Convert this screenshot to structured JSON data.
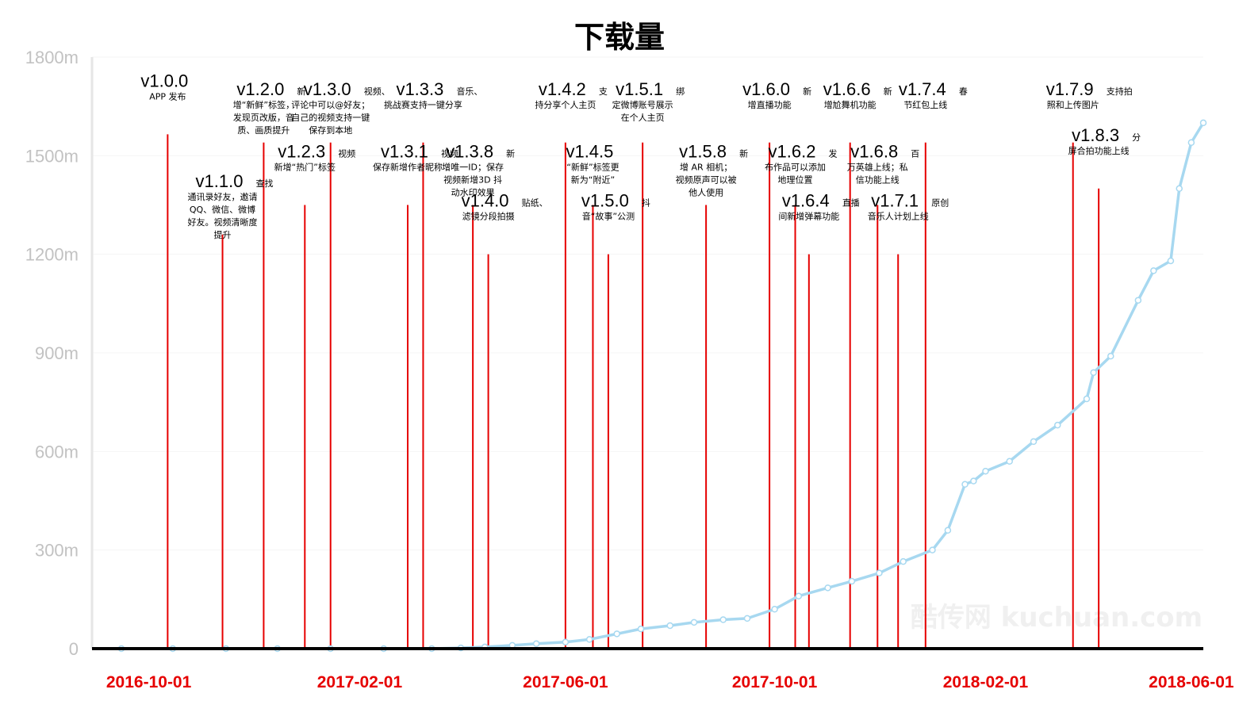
{
  "chart_data": {
    "type": "line",
    "title": "下载量",
    "watermark": "酷传网 kuchuan.com",
    "line_color": "#a7d8f0",
    "marker_color": "#e60000",
    "x_tick_color": "#e60000",
    "ylim": [
      0,
      1800
    ],
    "yticks": [
      "0",
      "300m",
      "600m",
      "900m",
      "1200m",
      "1500m",
      "1800m"
    ],
    "xlim": [
      "2016-09-15",
      "2018-06-08"
    ],
    "xticks": [
      {
        "date": "2016-10-01",
        "label": "2016-10-01"
      },
      {
        "date": "2017-02-01",
        "label": "2017-02-01"
      },
      {
        "date": "2017-06-01",
        "label": "2017-06-01"
      },
      {
        "date": "2017-10-01",
        "label": "2017-10-01"
      },
      {
        "date": "2018-02-01",
        "label": "2018-02-01"
      },
      {
        "date": "2018-06-01",
        "label": "2018-06-01"
      }
    ],
    "series": [
      {
        "x": [
          "2016-09-15",
          "2016-10-15",
          "2016-11-15",
          "2016-12-15",
          "2017-01-15",
          "2017-02-15",
          "2017-03-15",
          "2017-04-01",
          "2017-04-15",
          "2017-05-01",
          "2017-05-15",
          "2017-06-01",
          "2017-06-15",
          "2017-07-01",
          "2017-07-15",
          "2017-08-01",
          "2017-08-15",
          "2017-09-01",
          "2017-09-15",
          "2017-10-01",
          "2017-10-15",
          "2017-11-01",
          "2017-11-15",
          "2017-12-01",
          "2017-12-15",
          "2018-01-01",
          "2018-01-10",
          "2018-01-20",
          "2018-01-25",
          "2018-02-01",
          "2018-02-15",
          "2018-03-01",
          "2018-03-15",
          "2018-04-01",
          "2018-04-05",
          "2018-04-15",
          "2018-05-01",
          "2018-05-10",
          "2018-05-20",
          "2018-05-25",
          "2018-06-01",
          "2018-06-08"
        ],
        "y": [
          0,
          0,
          0,
          0,
          0,
          0,
          0,
          2,
          5,
          10,
          15,
          20,
          28,
          45,
          60,
          70,
          80,
          88,
          92,
          120,
          160,
          185,
          205,
          230,
          265,
          300,
          360,
          500,
          510,
          540,
          570,
          630,
          680,
          760,
          840,
          890,
          1060,
          1150,
          1180,
          1400,
          1540,
          1600
        ]
      }
    ],
    "markers": [
      {
        "date": "2016-10-12",
        "top": "1565",
        "version": "v1.0.0",
        "text": [
          "APP 发布"
        ]
      },
      {
        "date": "2016-11-13",
        "top": "1260",
        "version": "v1.1.0",
        "text": [
          "查找",
          "通讯录好友，邀请",
          "QQ、微信、微博",
          "好友。视频清晰度",
          "提升"
        ]
      },
      {
        "date": "2016-12-07",
        "top": "1540",
        "version": "v1.2.0",
        "text": [
          "新",
          "增“新鲜”标签，",
          "发现页改版，音",
          "质、画质提升"
        ]
      },
      {
        "date": "2016-12-31",
        "top": "1350",
        "version": "v1.2.3",
        "text": [
          "视频",
          "新增“热门”标签"
        ]
      },
      {
        "date": "2017-01-15",
        "top": "1540",
        "version": "v1.3.0",
        "text": [
          "视频、",
          "评论中可以@好友；",
          "自己的视频支持一键",
          "保存到本地"
        ]
      },
      {
        "date": "2017-03-01",
        "top": "1350",
        "version": "v1.3.1",
        "text": [
          "视频",
          "保存新增作者昵称"
        ]
      },
      {
        "date": "2017-03-10",
        "top": "1540",
        "version": "v1.3.3",
        "text": [
          "音乐、",
          "挑战赛支持一键分享"
        ]
      },
      {
        "date": "2017-04-08",
        "top": "1350",
        "version": "v1.3.8",
        "text": [
          "新",
          "增唯一ID；保存",
          "视频新增3D 抖",
          "动水印效果"
        ]
      },
      {
        "date": "2017-04-17",
        "top": "1200",
        "version": "v1.4.0",
        "text": [
          "贴纸、",
          "滤镜分段拍摄"
        ]
      },
      {
        "date": "2017-06-01",
        "top": "1540",
        "version": "v1.4.2",
        "text": [
          "支",
          "持分享个人主页"
        ]
      },
      {
        "date": "2017-06-17",
        "top": "1350",
        "version": "v1.4.5",
        "text": [
          "“新鲜”标签更",
          "新为“附近”"
        ]
      },
      {
        "date": "2017-06-26",
        "top": "1200",
        "version": "v1.5.0",
        "text": [
          "抖",
          "音“故事”公测"
        ]
      },
      {
        "date": "2017-07-16",
        "top": "1540",
        "version": "v1.5.1",
        "text": [
          "绑",
          "定微博账号展示",
          "在个人主页"
        ]
      },
      {
        "date": "2017-08-22",
        "top": "1350",
        "version": "v1.5.8",
        "text": [
          "新",
          "增 AR 相机；",
          "视频原声可以被",
          "他人使用"
        ]
      },
      {
        "date": "2017-09-28",
        "top": "1540",
        "version": "v1.6.0",
        "text": [
          "新",
          "增直播功能"
        ]
      },
      {
        "date": "2017-10-13",
        "top": "1350",
        "version": "v1.6.2",
        "text": [
          "发",
          "布作品可以添加",
          "地理位置"
        ]
      },
      {
        "date": "2017-10-21",
        "top": "1200",
        "version": "v1.6.4",
        "text": [
          "直播",
          "间新增弹幕功能"
        ]
      },
      {
        "date": "2017-11-14",
        "top": "1540",
        "version": "v1.6.6",
        "text": [
          "新",
          "增尬舞机功能"
        ]
      },
      {
        "date": "2017-11-30",
        "top": "1350",
        "version": "v1.6.8",
        "text": [
          "百",
          "万英雄上线；私",
          "信功能上线"
        ]
      },
      {
        "date": "2017-12-12",
        "top": "1200",
        "version": "v1.7.1",
        "text": [
          "原创",
          "音乐人计划上线"
        ]
      },
      {
        "date": "2017-12-28",
        "top": "1540",
        "version": "v1.7.4",
        "text": [
          "春",
          "节红包上线"
        ]
      },
      {
        "date": "2018-03-24",
        "top": "1540",
        "version": "v1.7.9",
        "text": [
          "支持拍",
          "照和上传图片"
        ]
      },
      {
        "date": "2018-04-08",
        "top": "1400",
        "version": "v1.8.3",
        "text": [
          "分",
          "屏合拍功能上线"
        ]
      }
    ]
  }
}
